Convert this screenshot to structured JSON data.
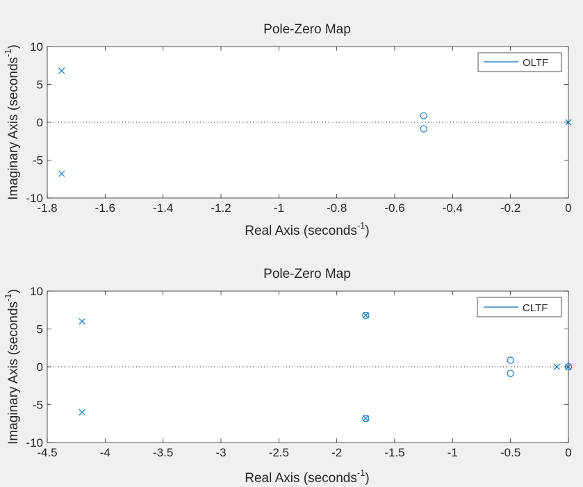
{
  "colors": {
    "series": "#0072bd",
    "figure_bg": "#f0f0f0",
    "axes_bg": "#ffffff",
    "text": "#262626"
  },
  "chart_data": [
    {
      "type": "scatter",
      "title": "Pole-Zero Map",
      "xlabel": "Real Axis (seconds",
      "xlabel_sup": "-1",
      "xlabel_close": ")",
      "ylabel": "Imaginary Axis (seconds",
      "ylabel_sup": "-1",
      "ylabel_close": ")",
      "xlim": [
        -1.8,
        0
      ],
      "ylim": [
        -10,
        10
      ],
      "xticks": [
        -1.8,
        -1.6,
        -1.4,
        -1.2,
        -1,
        -0.8,
        -0.6,
        -0.4,
        -0.2,
        0
      ],
      "yticks": [
        -10,
        -5,
        0,
        5,
        10
      ],
      "xtick_labels": [
        "-1.8",
        "-1.6",
        "-1.4",
        "-1.2",
        "-1",
        "-0.8",
        "-0.6",
        "-0.4",
        "-0.2",
        "0"
      ],
      "ytick_labels": [
        "-10",
        "-5",
        "0",
        "5",
        "10"
      ],
      "legend": {
        "entry": "OLTF",
        "position": "top-right"
      },
      "series": [
        {
          "name": "OLTF",
          "poles": [
            [
              -1.75,
              6.8
            ],
            [
              -1.75,
              -6.8
            ],
            [
              0,
              0
            ]
          ],
          "zeros": [
            [
              -0.5,
              0.87
            ],
            [
              -0.5,
              -0.87
            ]
          ]
        }
      ]
    },
    {
      "type": "scatter",
      "title": "Pole-Zero Map",
      "xlabel": "Real Axis (seconds",
      "xlabel_sup": "-1",
      "xlabel_close": ")",
      "ylabel": "Imaginary Axis (seconds",
      "ylabel_sup": "-1",
      "ylabel_close": ")",
      "xlim": [
        -4.5,
        0
      ],
      "ylim": [
        -10,
        10
      ],
      "xticks": [
        -4.5,
        -4,
        -3.5,
        -3,
        -2.5,
        -2,
        -1.5,
        -1,
        -0.5,
        0
      ],
      "yticks": [
        -10,
        -5,
        0,
        5,
        10
      ],
      "xtick_labels": [
        "-4.5",
        "-4",
        "-3.5",
        "-3",
        "-2.5",
        "-2",
        "-1.5",
        "-1",
        "-0.5",
        "0"
      ],
      "ytick_labels": [
        "-10",
        "-5",
        "0",
        "5",
        "10"
      ],
      "legend": {
        "entry": "CLTF",
        "position": "top-right"
      },
      "series": [
        {
          "name": "CLTF",
          "poles": [
            [
              -4.2,
              6.0
            ],
            [
              -4.2,
              -6.0
            ],
            [
              -1.75,
              6.8
            ],
            [
              -1.75,
              -6.8
            ],
            [
              -0.1,
              0
            ],
            [
              0,
              0
            ]
          ],
          "zeros": [
            [
              -1.75,
              6.8
            ],
            [
              -1.75,
              -6.8
            ],
            [
              -0.5,
              0.87
            ],
            [
              -0.5,
              -0.87
            ],
            [
              0,
              0
            ]
          ]
        }
      ]
    }
  ]
}
